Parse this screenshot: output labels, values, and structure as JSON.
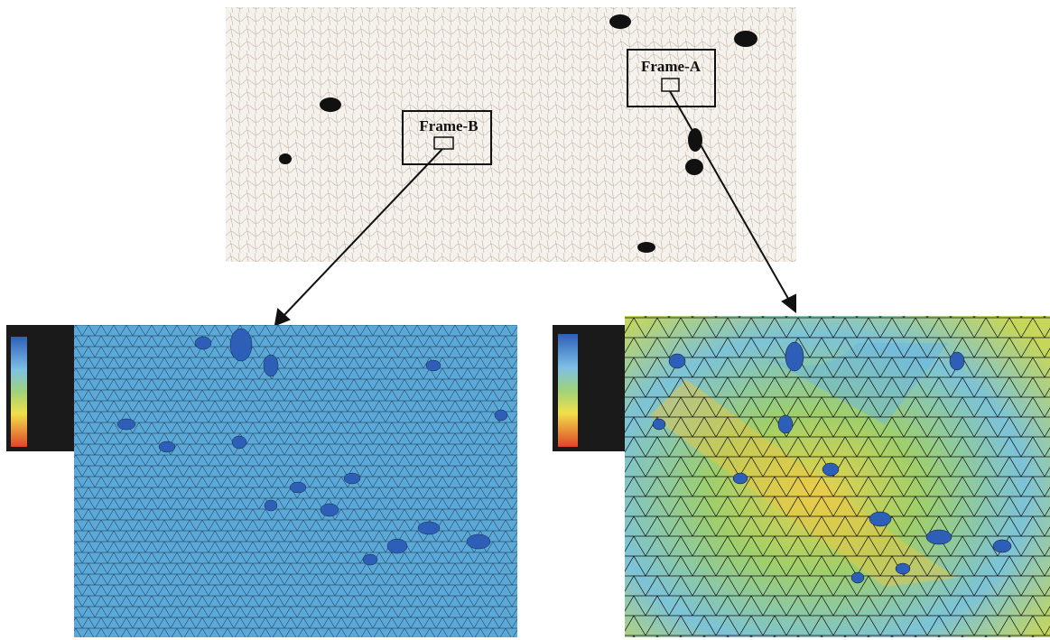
{
  "labels": {
    "frame_a": "Frame-A",
    "frame_b": "Frame-B"
  }
}
